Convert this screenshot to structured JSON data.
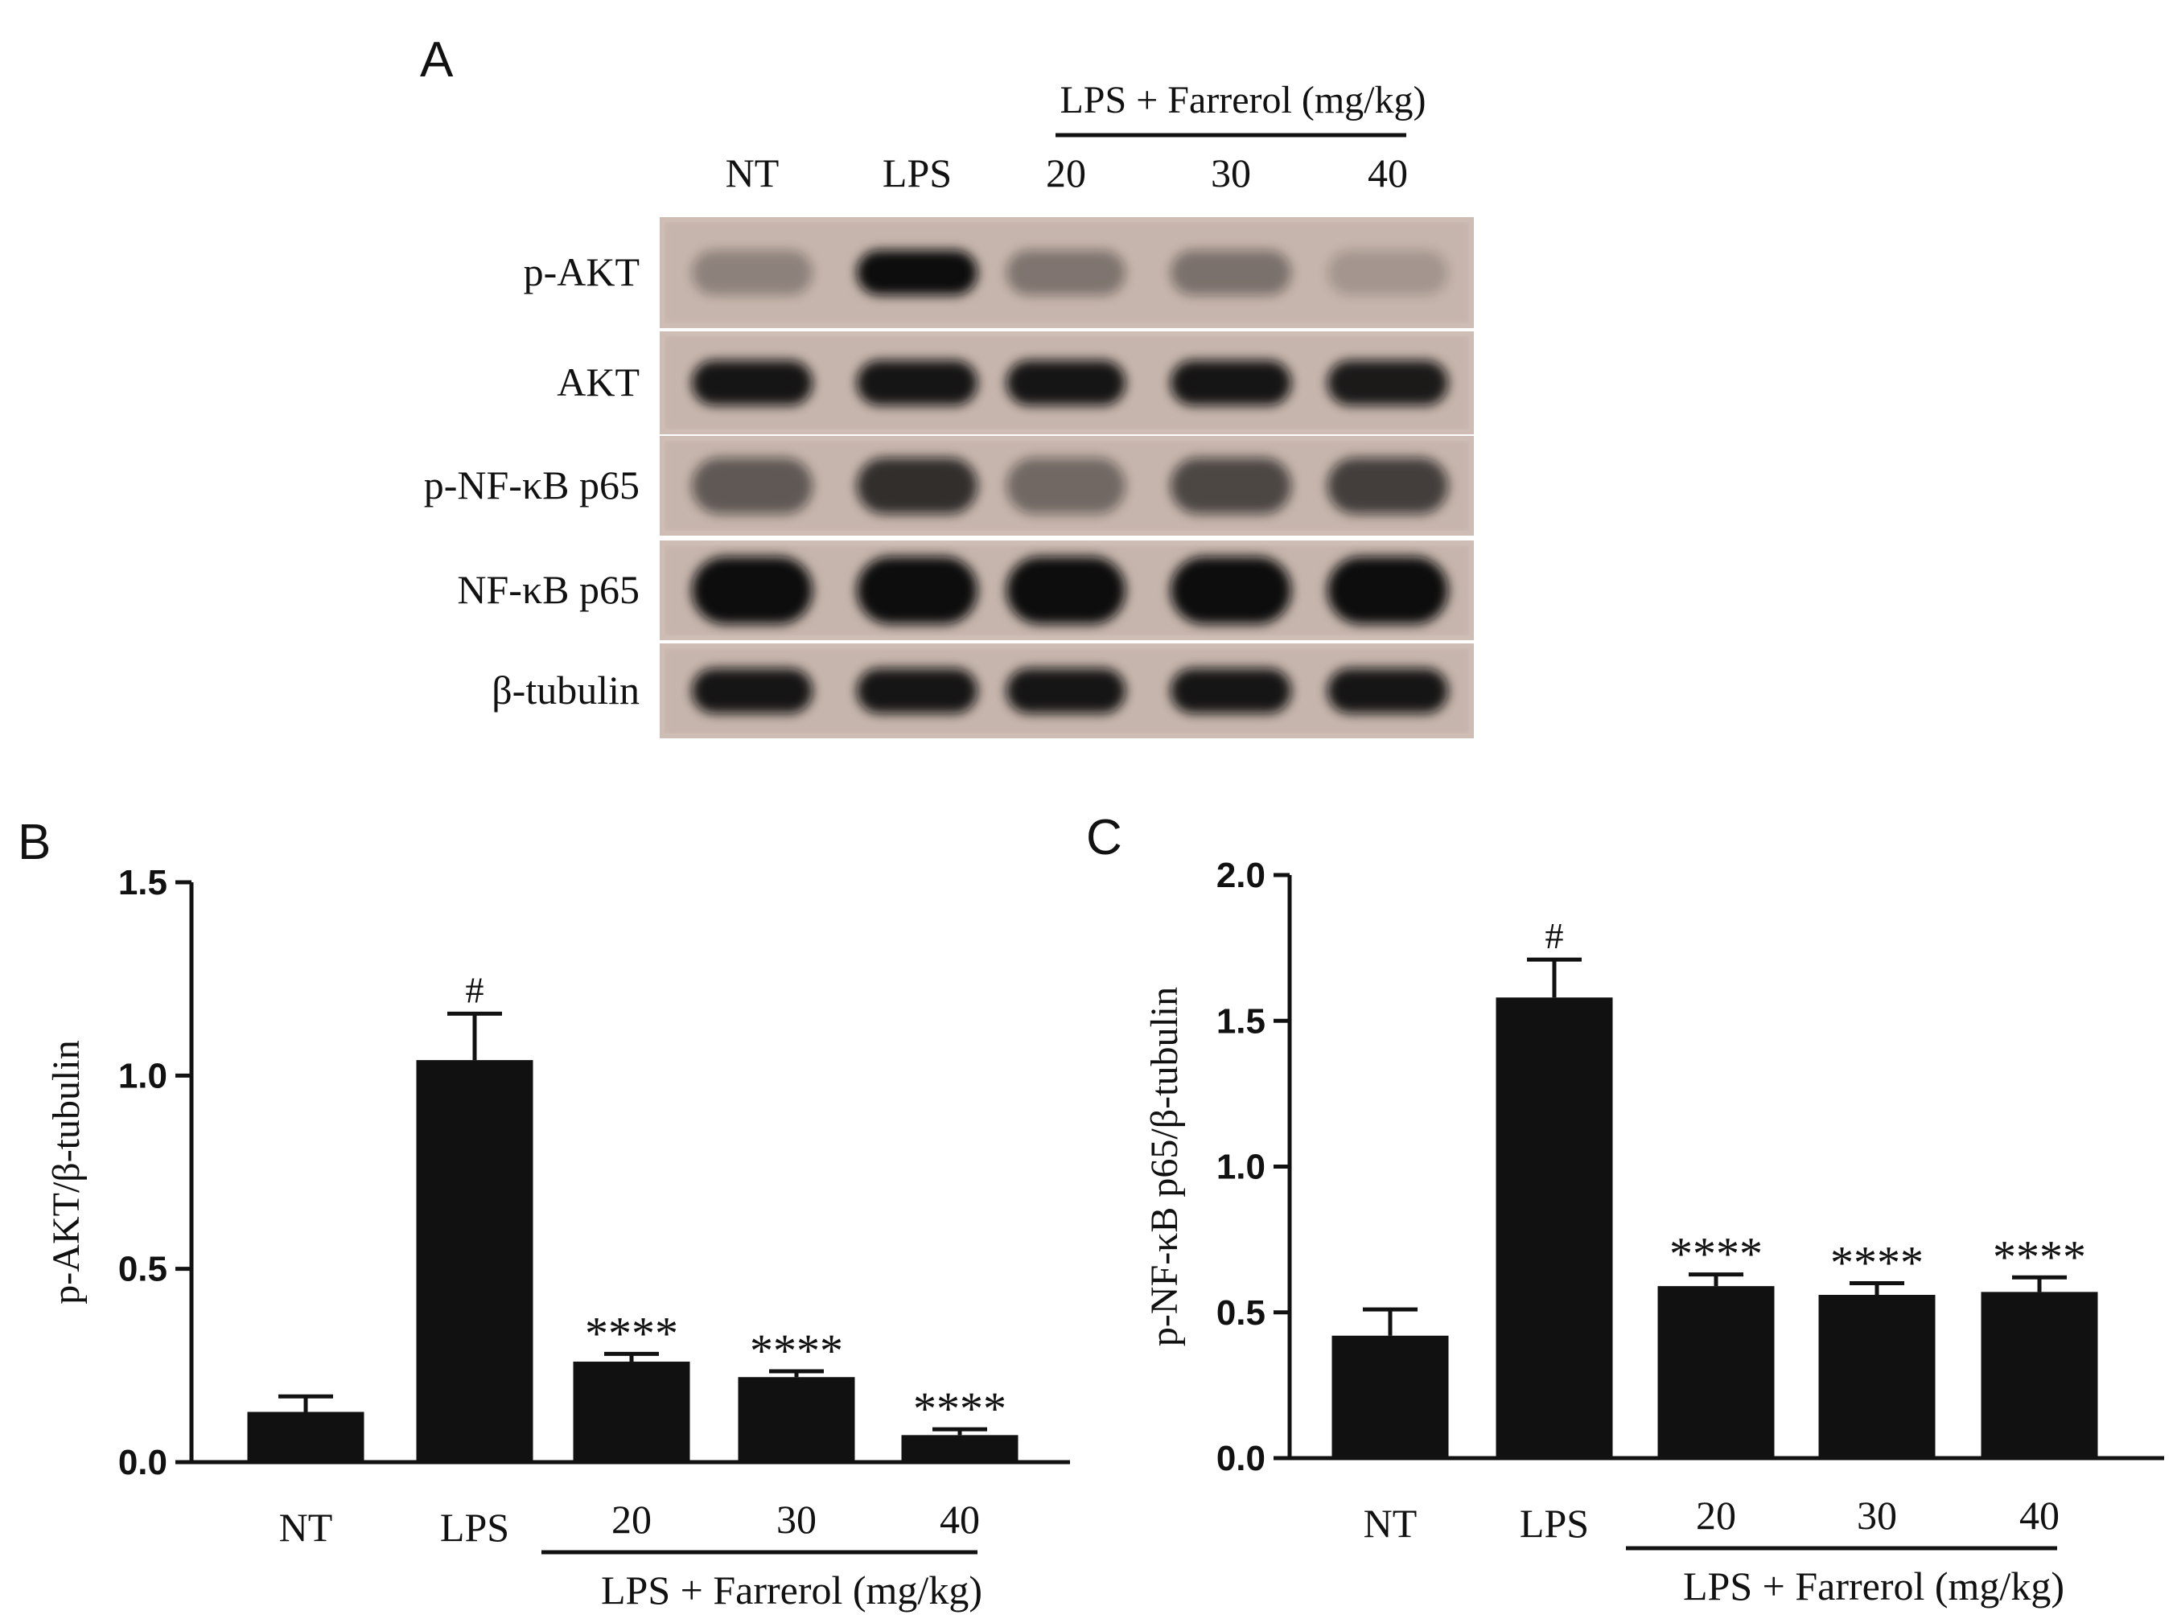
{
  "panels": {
    "a": "A",
    "b": "B",
    "c": "C"
  },
  "blot": {
    "group_header": "LPS + Farrerol (mg/kg)",
    "lanes": [
      "NT",
      "LPS",
      "20",
      "30",
      "40"
    ],
    "rows": [
      {
        "label": "p-AKT",
        "intensity": [
          0.3,
          1.0,
          0.38,
          0.4,
          0.18
        ]
      },
      {
        "label": "AKT",
        "intensity": [
          0.95,
          0.95,
          0.95,
          0.95,
          0.92
        ]
      },
      {
        "label": "p-NF-κB p65",
        "intensity": [
          0.55,
          0.8,
          0.45,
          0.65,
          0.7
        ]
      },
      {
        "label": "NF-κB p65",
        "intensity": [
          1.0,
          1.0,
          1.0,
          1.0,
          1.0
        ]
      },
      {
        "label": "β-tubulin",
        "intensity": [
          0.95,
          0.95,
          0.95,
          0.95,
          0.95
        ]
      }
    ]
  },
  "chart_data": [
    {
      "type": "bar",
      "panel": "B",
      "categories": [
        "NT",
        "LPS",
        "20",
        "30",
        "40"
      ],
      "values": [
        0.13,
        1.04,
        0.26,
        0.22,
        0.07
      ],
      "errors": [
        0.04,
        0.12,
        0.02,
        0.015,
        0.015
      ],
      "annotations": [
        "",
        "#",
        "****",
        "****",
        "****"
      ],
      "ylabel": "p-AKT/β-tubulin",
      "yticks": [
        "0.0",
        "0.5",
        "1.0",
        "1.5"
      ],
      "ylim": [
        0,
        1.5
      ],
      "group_label": "LPS + Farrerol (mg/kg)",
      "color": "#111111"
    },
    {
      "type": "bar",
      "panel": "C",
      "categories": [
        "NT",
        "LPS",
        "20",
        "30",
        "40"
      ],
      "values": [
        0.42,
        1.58,
        0.59,
        0.56,
        0.57
      ],
      "errors": [
        0.09,
        0.13,
        0.04,
        0.04,
        0.05
      ],
      "annotations": [
        "",
        "#",
        "****",
        "****",
        "****"
      ],
      "ylabel": "p-NF-κB p65/β-tubulin",
      "yticks": [
        "0.0",
        "0.5",
        "1.0",
        "1.5",
        "2.0"
      ],
      "ylim": [
        0,
        2.0
      ],
      "group_label": "LPS + Farrerol (mg/kg)",
      "color": "#111111"
    }
  ]
}
